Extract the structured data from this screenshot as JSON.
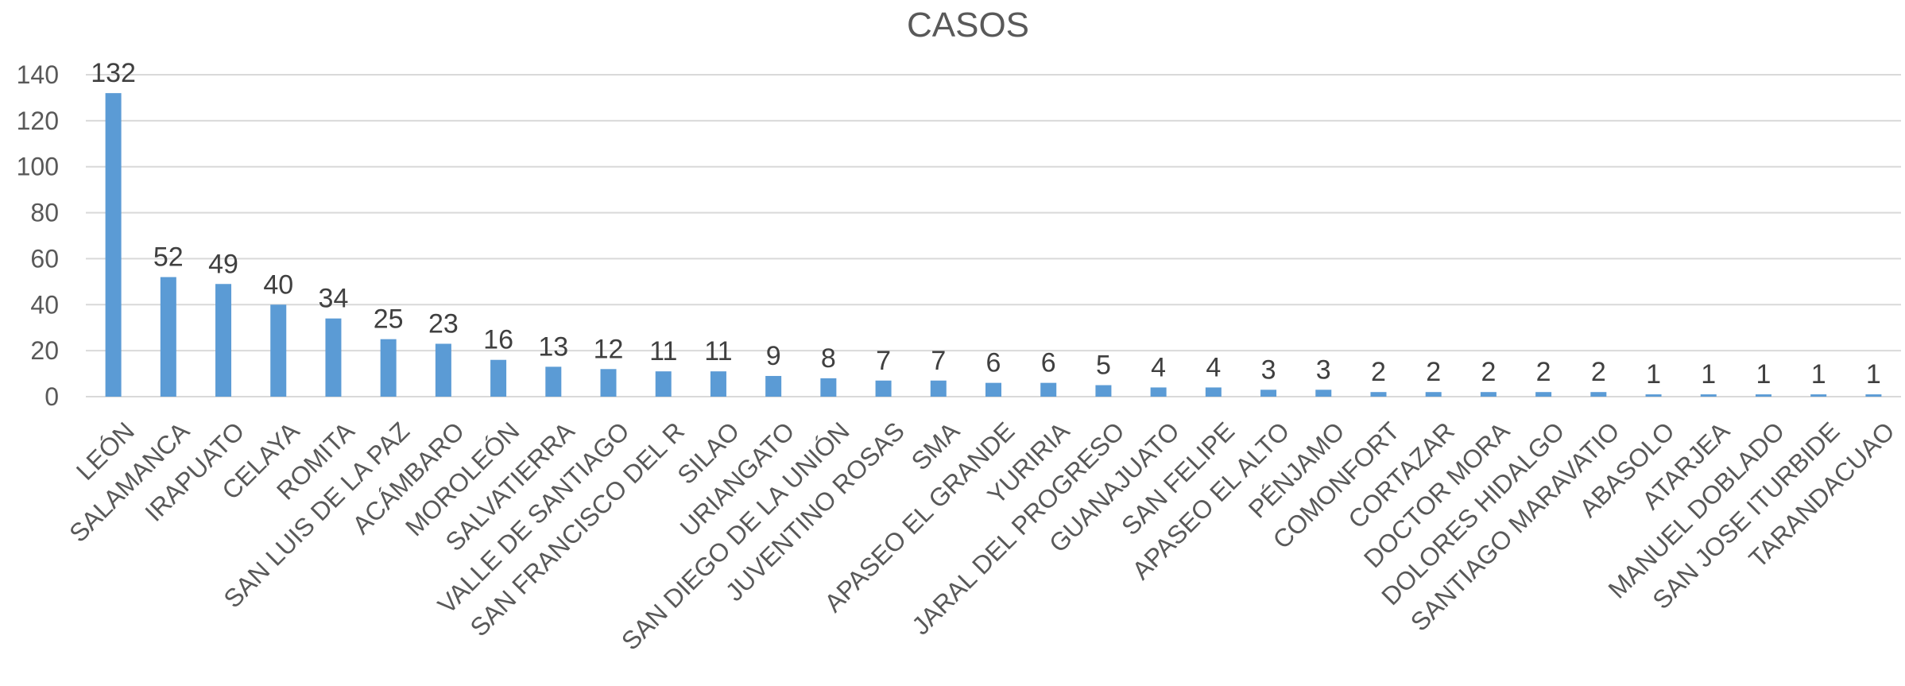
{
  "chart_data": {
    "type": "bar",
    "title": "CASOS",
    "xlabel": "",
    "ylabel": "",
    "ylim": [
      0,
      140
    ],
    "yticks": [
      0,
      20,
      40,
      60,
      80,
      100,
      120,
      140
    ],
    "grid": true,
    "legend": "none",
    "bar_color": "#5b9bd5",
    "categories": [
      "LEÓN",
      "SALAMANCA",
      "IRAPUATO",
      "CELAYA",
      "ROMITA",
      "SAN LUIS DE LA PAZ",
      "ACÁMBARO",
      "MOROLEÓN",
      "SALVATIERRA",
      "VALLE DE SANTIAGO",
      "SAN FRANCISCO DEL R",
      "SILAO",
      "URIANGATO",
      "SAN DIEGO DE LA UNIÓN",
      "JUVENTINO ROSAS",
      "SMA",
      "APASEO EL GRANDE",
      "YURIRIA",
      "JARAL DEL PROGRESO",
      "GUANAJUATO",
      "SAN FELIPE",
      "APASEO EL ALTO",
      "PÉNJAMO",
      "COMONFORT",
      "CORTAZAR",
      "DOCTOR MORA",
      "DOLORES HIDALGO",
      "SANTIAGO MARAVATIO",
      "ABASOLO",
      "ATARJEA",
      "MANUEL DOBLADO",
      "SAN JOSE ITURBIDE",
      "TARANDACUAO"
    ],
    "values": [
      132,
      52,
      49,
      40,
      34,
      25,
      23,
      16,
      13,
      12,
      11,
      11,
      9,
      8,
      7,
      7,
      6,
      6,
      5,
      4,
      4,
      3,
      3,
      2,
      2,
      2,
      2,
      2,
      1,
      1,
      1,
      1,
      1
    ]
  }
}
